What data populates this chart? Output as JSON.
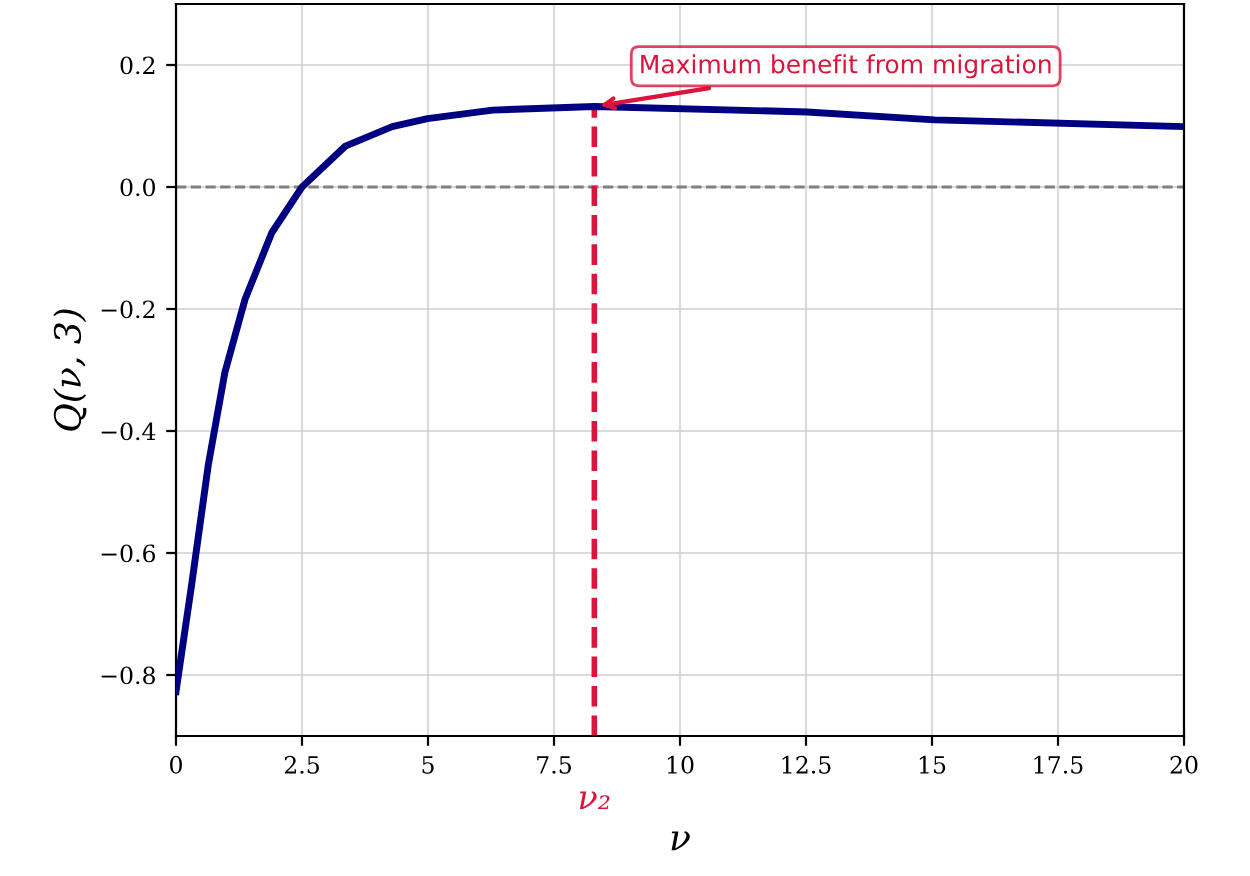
{
  "chart_data": {
    "type": "line",
    "xlabel": "ν",
    "ylabel": "Q(ν, 3)",
    "x": [
      0,
      0.31,
      0.64,
      0.97,
      1.37,
      1.9,
      2.5,
      3.36,
      4.29,
      4.99,
      6.28,
      8.3,
      12.52,
      15.05,
      20
    ],
    "series": [
      {
        "color": "#000080",
        "values": [
          -0.827,
          -0.652,
          -0.456,
          -0.304,
          -0.184,
          -0.075,
          0.0,
          0.067,
          0.099,
          0.112,
          0.126,
          0.132,
          0.123,
          0.11,
          0.099
        ]
      }
    ],
    "xlim": [
      0,
      20
    ],
    "ylim": [
      -0.9,
      0.3
    ],
    "xticks": [
      0,
      2.5,
      5,
      7.5,
      10,
      12.5,
      15,
      17.5,
      20
    ],
    "yticks": [
      {
        "value": -0.8,
        "label": "−0.8"
      },
      {
        "value": -0.6,
        "label": "−0.6"
      },
      {
        "value": -0.4,
        "label": "−0.4"
      },
      {
        "value": -0.2,
        "label": "−0.2"
      },
      {
        "value": 0,
        "label": "0.0"
      },
      {
        "value": 0.2,
        "label": "0.2"
      }
    ],
    "grid": true,
    "marker": "none",
    "line_style": "solid",
    "ref_lines": [
      {
        "axis": "y",
        "value": 0,
        "color": "#808080",
        "line_style": "dashed"
      },
      {
        "axis": "x",
        "value": 8.3,
        "label": "ν₂",
        "color": "#dc143c",
        "line_style": "dashed"
      }
    ],
    "annotations": [
      {
        "text": "Maximum benefit from migration",
        "x": 8.3,
        "y": 0.132
      }
    ]
  }
}
